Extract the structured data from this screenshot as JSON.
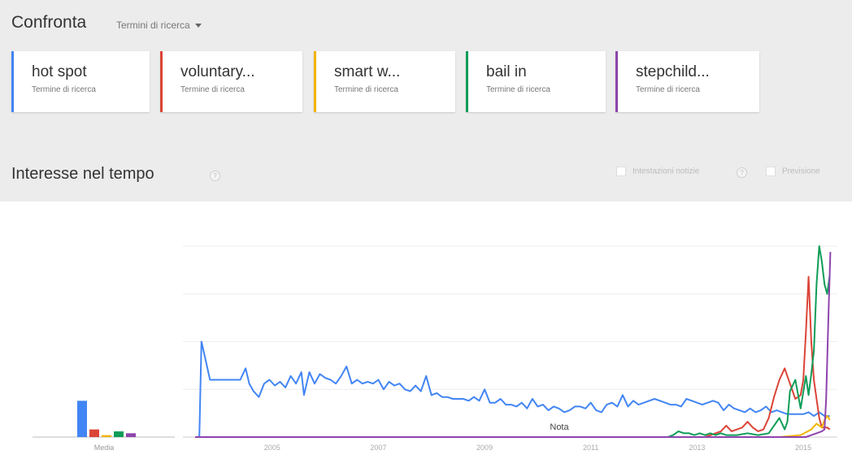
{
  "compare": {
    "title": "Confronta",
    "dropdown_label": "Termini di ricerca"
  },
  "terms": [
    {
      "name": "hot spot",
      "sub": "Termine di ricerca",
      "color": "#4285f4"
    },
    {
      "name": "voluntary...",
      "sub": "Termine di ricerca",
      "color": "#db4437"
    },
    {
      "name": "smart w...",
      "sub": "Termine di ricerca",
      "color": "#f4b400"
    },
    {
      "name": "bail in",
      "sub": "Termine di ricerca",
      "color": "#0f9d58"
    },
    {
      "name": "stepchild...",
      "sub": "Termine di ricerca",
      "color": "#8e44ad"
    }
  ],
  "section": {
    "title": "Interesse nel tempo",
    "help_icon": "?"
  },
  "options": {
    "news_label": "Intestazioni notizie",
    "forecast_label": "Previsione",
    "help_icon": "?"
  },
  "chart_data": {
    "type": "line",
    "average_label": "Media",
    "note_label": "Nota",
    "x_ticks": [
      "2005",
      "2007",
      "2009",
      "2011",
      "2013",
      "2015"
    ],
    "grid": true,
    "y_range": [
      0,
      100
    ],
    "x_range": [
      2004.0,
      2016.0
    ],
    "averages": [
      {
        "series": "hot spot",
        "value": 19
      },
      {
        "series": "voluntary...",
        "value": 4
      },
      {
        "series": "smart w...",
        "value": 1
      },
      {
        "series": "bail in",
        "value": 3
      },
      {
        "series": "stepchild...",
        "value": 2
      }
    ],
    "series": [
      {
        "name": "hot spot",
        "color": "#4285f4",
        "points": [
          [
            2004.0,
            0
          ],
          [
            2004.08,
            0
          ],
          [
            2004.12,
            50
          ],
          [
            2004.2,
            40
          ],
          [
            2004.28,
            30
          ],
          [
            2004.5,
            30
          ],
          [
            2004.6,
            30
          ],
          [
            2004.75,
            30
          ],
          [
            2004.85,
            30
          ],
          [
            2004.95,
            36
          ],
          [
            2005.02,
            28
          ],
          [
            2005.1,
            24
          ],
          [
            2005.2,
            21
          ],
          [
            2005.3,
            28
          ],
          [
            2005.4,
            30
          ],
          [
            2005.5,
            27
          ],
          [
            2005.6,
            29
          ],
          [
            2005.7,
            26
          ],
          [
            2005.8,
            32
          ],
          [
            2005.9,
            28
          ],
          [
            2006.0,
            34
          ],
          [
            2006.05,
            22
          ],
          [
            2006.15,
            34
          ],
          [
            2006.25,
            28
          ],
          [
            2006.35,
            33
          ],
          [
            2006.45,
            31
          ],
          [
            2006.55,
            30
          ],
          [
            2006.65,
            28
          ],
          [
            2006.75,
            32
          ],
          [
            2006.85,
            37
          ],
          [
            2006.95,
            28
          ],
          [
            2007.05,
            30
          ],
          [
            2007.15,
            28
          ],
          [
            2007.25,
            29
          ],
          [
            2007.35,
            28
          ],
          [
            2007.45,
            30
          ],
          [
            2007.55,
            25
          ],
          [
            2007.65,
            29
          ],
          [
            2007.75,
            27
          ],
          [
            2007.85,
            28
          ],
          [
            2007.95,
            25
          ],
          [
            2008.05,
            24
          ],
          [
            2008.15,
            27
          ],
          [
            2008.25,
            24
          ],
          [
            2008.35,
            32
          ],
          [
            2008.45,
            22
          ],
          [
            2008.55,
            23
          ],
          [
            2008.65,
            21
          ],
          [
            2008.75,
            21
          ],
          [
            2008.85,
            20
          ],
          [
            2008.95,
            20
          ],
          [
            2009.05,
            20
          ],
          [
            2009.15,
            19
          ],
          [
            2009.25,
            21
          ],
          [
            2009.35,
            19
          ],
          [
            2009.45,
            25
          ],
          [
            2009.55,
            18
          ],
          [
            2009.65,
            18
          ],
          [
            2009.75,
            20
          ],
          [
            2009.85,
            17
          ],
          [
            2009.95,
            17
          ],
          [
            2010.05,
            16
          ],
          [
            2010.15,
            18
          ],
          [
            2010.25,
            15
          ],
          [
            2010.35,
            20
          ],
          [
            2010.45,
            16
          ],
          [
            2010.55,
            17
          ],
          [
            2010.65,
            14
          ],
          [
            2010.75,
            16
          ],
          [
            2010.85,
            15
          ],
          [
            2010.95,
            13
          ],
          [
            2011.05,
            14
          ],
          [
            2011.15,
            16
          ],
          [
            2011.25,
            16
          ],
          [
            2011.35,
            15
          ],
          [
            2011.45,
            18
          ],
          [
            2011.55,
            14
          ],
          [
            2011.65,
            13
          ],
          [
            2011.75,
            17
          ],
          [
            2011.85,
            18
          ],
          [
            2011.95,
            16
          ],
          [
            2012.05,
            22
          ],
          [
            2012.15,
            16
          ],
          [
            2012.25,
            19
          ],
          [
            2012.35,
            17
          ],
          [
            2012.45,
            18
          ],
          [
            2012.55,
            19
          ],
          [
            2012.65,
            20
          ],
          [
            2012.75,
            19
          ],
          [
            2012.85,
            18
          ],
          [
            2012.95,
            17
          ],
          [
            2013.05,
            17
          ],
          [
            2013.15,
            16
          ],
          [
            2013.25,
            20
          ],
          [
            2013.35,
            19
          ],
          [
            2013.45,
            18
          ],
          [
            2013.55,
            17
          ],
          [
            2013.65,
            18
          ],
          [
            2013.75,
            19
          ],
          [
            2013.85,
            18
          ],
          [
            2013.95,
            14
          ],
          [
            2014.05,
            17
          ],
          [
            2014.15,
            15
          ],
          [
            2014.25,
            14
          ],
          [
            2014.35,
            13
          ],
          [
            2014.45,
            15
          ],
          [
            2014.55,
            13
          ],
          [
            2014.65,
            14
          ],
          [
            2014.75,
            16
          ],
          [
            2014.85,
            13
          ],
          [
            2014.95,
            14
          ],
          [
            2015.05,
            13
          ],
          [
            2015.15,
            12
          ],
          [
            2015.25,
            12
          ],
          [
            2015.35,
            12
          ],
          [
            2015.45,
            12
          ],
          [
            2015.55,
            13
          ],
          [
            2015.65,
            11
          ],
          [
            2015.75,
            13
          ],
          [
            2015.85,
            11
          ],
          [
            2015.95,
            11
          ]
        ]
      },
      {
        "name": "voluntary...",
        "color": "#db4437",
        "points": [
          [
            2004.0,
            0
          ],
          [
            2013.6,
            0
          ],
          [
            2013.9,
            3
          ],
          [
            2014.0,
            6
          ],
          [
            2014.1,
            3
          ],
          [
            2014.3,
            5
          ],
          [
            2014.4,
            8
          ],
          [
            2014.5,
            5
          ],
          [
            2014.6,
            3
          ],
          [
            2014.7,
            4
          ],
          [
            2014.8,
            10
          ],
          [
            2014.9,
            21
          ],
          [
            2015.0,
            30
          ],
          [
            2015.1,
            36
          ],
          [
            2015.2,
            28
          ],
          [
            2015.3,
            20
          ],
          [
            2015.4,
            22
          ],
          [
            2015.45,
            30
          ],
          [
            2015.5,
            55
          ],
          [
            2015.55,
            84
          ],
          [
            2015.6,
            50
          ],
          [
            2015.65,
            30
          ],
          [
            2015.7,
            20
          ],
          [
            2015.75,
            10
          ],
          [
            2015.8,
            5
          ],
          [
            2015.9,
            5
          ],
          [
            2015.95,
            4
          ]
        ]
      },
      {
        "name": "smart w...",
        "color": "#f4b400",
        "points": [
          [
            2004.0,
            0
          ],
          [
            2015.0,
            0
          ],
          [
            2015.4,
            1
          ],
          [
            2015.6,
            4
          ],
          [
            2015.7,
            7
          ],
          [
            2015.8,
            5
          ],
          [
            2015.85,
            9
          ],
          [
            2015.9,
            11
          ],
          [
            2015.95,
            9
          ]
        ]
      },
      {
        "name": "bail in",
        "color": "#0f9d58",
        "points": [
          [
            2004.0,
            0
          ],
          [
            2012.9,
            0
          ],
          [
            2013.0,
            1
          ],
          [
            2013.1,
            3
          ],
          [
            2013.2,
            2
          ],
          [
            2013.3,
            2
          ],
          [
            2013.4,
            1
          ],
          [
            2013.5,
            2
          ],
          [
            2013.6,
            1
          ],
          [
            2013.7,
            2
          ],
          [
            2013.8,
            1
          ],
          [
            2013.9,
            2
          ],
          [
            2014.0,
            1
          ],
          [
            2014.2,
            1
          ],
          [
            2014.4,
            2
          ],
          [
            2014.6,
            1
          ],
          [
            2014.8,
            2
          ],
          [
            2015.0,
            10
          ],
          [
            2015.1,
            4
          ],
          [
            2015.15,
            8
          ],
          [
            2015.2,
            24
          ],
          [
            2015.3,
            30
          ],
          [
            2015.4,
            15
          ],
          [
            2015.5,
            32
          ],
          [
            2015.55,
            22
          ],
          [
            2015.6,
            33
          ],
          [
            2015.65,
            45
          ],
          [
            2015.7,
            80
          ],
          [
            2015.75,
            100
          ],
          [
            2015.8,
            92
          ],
          [
            2015.85,
            80
          ],
          [
            2015.9,
            75
          ],
          [
            2015.95,
            85
          ]
        ]
      },
      {
        "name": "stepchild...",
        "color": "#8e44ad",
        "points": [
          [
            2004.0,
            0
          ],
          [
            2015.5,
            0
          ],
          [
            2015.6,
            1
          ],
          [
            2015.7,
            2
          ],
          [
            2015.8,
            3
          ],
          [
            2015.85,
            4
          ],
          [
            2015.88,
            20
          ],
          [
            2015.92,
            60
          ],
          [
            2015.96,
            97
          ]
        ]
      }
    ]
  }
}
